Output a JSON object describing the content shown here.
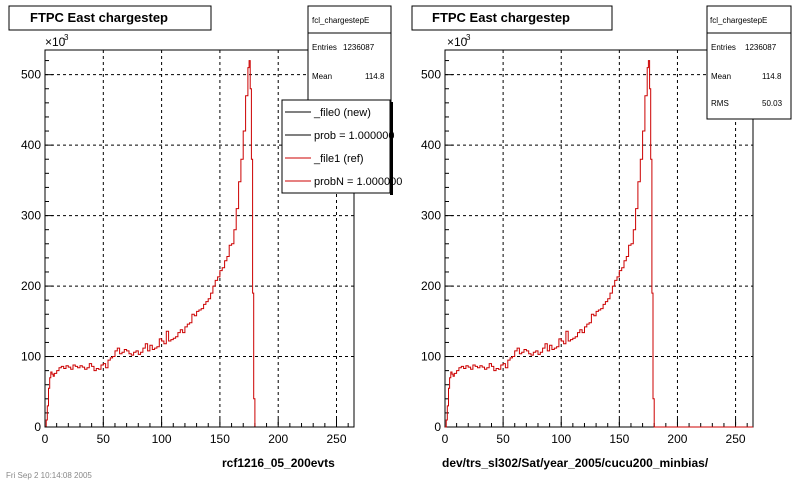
{
  "left_panel": {
    "title": "FTPC East chargestep",
    "exponent": "×10",
    "exponent_power": "3",
    "footer": "rcf1216_05_200evts",
    "corner_text": "Fri Sep  2 10:14:08 2005",
    "stats": {
      "name": "fcl_chargestepE",
      "rows": [
        {
          "label": "Entries",
          "value": "1236087"
        },
        {
          "label": "Mean",
          "value": "114.8"
        }
      ]
    },
    "legend": [
      {
        "label": "_file0 (new)",
        "color": "#000000"
      },
      {
        "label": "prob = 1.000000",
        "color": "#000000"
      },
      {
        "label": "_file1 (ref)",
        "color": "#cc0000"
      },
      {
        "label": "probN = 1.000000",
        "color": "#cc0000"
      }
    ]
  },
  "right_panel": {
    "title": "FTPC East chargestep",
    "exponent": "×10",
    "exponent_power": "3",
    "footer": "dev/trs_sl302/Sat/year_2005/cucu200_minbias/",
    "stats": {
      "name": "fcl_chargestepE",
      "rows": [
        {
          "label": "Entries",
          "value": "1236087"
        },
        {
          "label": "Mean",
          "value": "114.8"
        },
        {
          "label": "RMS",
          "value": "50.03"
        }
      ]
    }
  },
  "chart_data": [
    {
      "type": "line",
      "title": "FTPC East chargestep",
      "xlim": [
        0,
        265
      ],
      "ylim": [
        0,
        535
      ],
      "y_scale_note": "×10^3",
      "xticks": [
        0,
        50,
        100,
        150,
        200,
        250
      ],
      "yticks": [
        0,
        100,
        200,
        300,
        400,
        500
      ],
      "grid": true,
      "legend_position": "top-right",
      "series": [
        {
          "name": "_file1 (ref)",
          "color": "#cc0000",
          "x": [
            0,
            1,
            2,
            3,
            4,
            5,
            6,
            7,
            8,
            10,
            12,
            14,
            16,
            18,
            20,
            22,
            24,
            26,
            28,
            30,
            32,
            34,
            36,
            38,
            40,
            42,
            44,
            46,
            48,
            50,
            52,
            54,
            56,
            58,
            60,
            62,
            64,
            66,
            68,
            70,
            72,
            74,
            76,
            78,
            80,
            82,
            84,
            86,
            88,
            90,
            92,
            94,
            96,
            98,
            100,
            102,
            104,
            106,
            108,
            110,
            112,
            114,
            116,
            118,
            120,
            122,
            124,
            126,
            128,
            130,
            132,
            134,
            136,
            138,
            140,
            142,
            144,
            146,
            148,
            150,
            152,
            154,
            156,
            158,
            160,
            162,
            164,
            166,
            168,
            170,
            172,
            174,
            175,
            176,
            177,
            178,
            179,
            180,
            185,
            190,
            200,
            220,
            265
          ],
          "y": [
            0,
            10,
            30,
            55,
            70,
            78,
            75,
            72,
            76,
            80,
            84,
            86,
            83,
            87,
            85,
            82,
            88,
            86,
            84,
            87,
            85,
            82,
            84,
            90,
            86,
            80,
            83,
            82,
            88,
            90,
            84,
            95,
            98,
            100,
            108,
            112,
            104,
            106,
            110,
            108,
            104,
            102,
            106,
            108,
            103,
            106,
            112,
            118,
            108,
            116,
            110,
            112,
            114,
            125,
            122,
            118,
            136,
            122,
            124,
            126,
            128,
            134,
            138,
            134,
            142,
            146,
            148,
            160,
            158,
            164,
            166,
            168,
            174,
            178,
            182,
            190,
            200,
            208,
            213,
            222,
            226,
            236,
            242,
            258,
            260,
            280,
            310,
            348,
            380,
            420,
            470,
            510,
            520,
            480,
            380,
            190,
            40,
            0,
            0,
            0,
            0,
            0,
            0
          ]
        },
        {
          "name": "_file0 (new)",
          "color": "#000000",
          "x": [
            0,
            265
          ],
          "y": [
            0,
            0
          ]
        }
      ]
    },
    {
      "type": "line",
      "title": "FTPC East chargestep",
      "xlim": [
        0,
        265
      ],
      "ylim": [
        0,
        535
      ],
      "y_scale_note": "×10^3",
      "xticks": [
        0,
        50,
        100,
        150,
        200,
        250
      ],
      "yticks": [
        0,
        100,
        200,
        300,
        400,
        500
      ],
      "grid": true,
      "series": [
        {
          "name": "fcl_chargestepE",
          "color": "#cc0000",
          "x": [
            0,
            1,
            2,
            3,
            4,
            5,
            6,
            7,
            8,
            10,
            12,
            14,
            16,
            18,
            20,
            22,
            24,
            26,
            28,
            30,
            32,
            34,
            36,
            38,
            40,
            42,
            44,
            46,
            48,
            50,
            52,
            54,
            56,
            58,
            60,
            62,
            64,
            66,
            68,
            70,
            72,
            74,
            76,
            78,
            80,
            82,
            84,
            86,
            88,
            90,
            92,
            94,
            96,
            98,
            100,
            102,
            104,
            106,
            108,
            110,
            112,
            114,
            116,
            118,
            120,
            122,
            124,
            126,
            128,
            130,
            132,
            134,
            136,
            138,
            140,
            142,
            144,
            146,
            148,
            150,
            152,
            154,
            156,
            158,
            160,
            162,
            164,
            166,
            168,
            170,
            172,
            174,
            175,
            176,
            177,
            178,
            179,
            180,
            185,
            190,
            200,
            220,
            265
          ],
          "y": [
            0,
            10,
            30,
            55,
            70,
            78,
            75,
            72,
            76,
            80,
            84,
            86,
            83,
            87,
            85,
            82,
            88,
            86,
            84,
            87,
            85,
            82,
            84,
            90,
            86,
            80,
            83,
            82,
            88,
            90,
            84,
            95,
            98,
            100,
            108,
            112,
            104,
            106,
            110,
            108,
            104,
            102,
            106,
            108,
            103,
            106,
            112,
            118,
            108,
            116,
            110,
            112,
            114,
            125,
            122,
            118,
            136,
            122,
            124,
            126,
            128,
            134,
            138,
            134,
            142,
            146,
            148,
            160,
            158,
            164,
            166,
            168,
            174,
            178,
            182,
            190,
            200,
            208,
            213,
            222,
            226,
            236,
            242,
            258,
            260,
            280,
            310,
            348,
            380,
            420,
            470,
            510,
            520,
            480,
            380,
            190,
            40,
            0,
            0,
            0,
            0,
            0,
            0
          ]
        }
      ]
    }
  ]
}
